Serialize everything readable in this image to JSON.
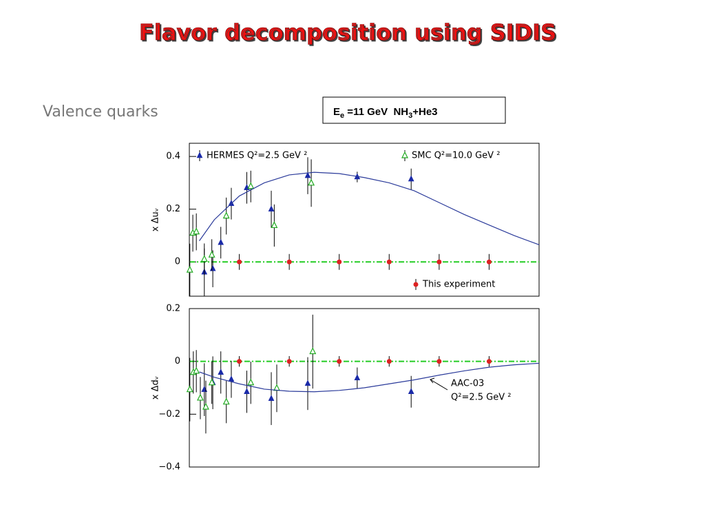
{
  "slide": {
    "title": "Flavor decomposition using SIDIS",
    "subtitle": "Valence quarks",
    "box": [
      "E",
      "e",
      " =11 GeV  NH",
      "3",
      "+He3"
    ]
  },
  "chart_data": [
    {
      "type": "scatter",
      "ylabel": "x Δuᵥ",
      "xlim": [
        0,
        0.7
      ],
      "ylim": [
        -0.13,
        0.45
      ],
      "yticks": [
        0,
        0.2,
        0.4
      ],
      "zero_line": {
        "value": 0,
        "color": "#22cc22"
      },
      "series": [
        {
          "name": "HERMES Q²=2.5 GeV ²",
          "color": "#1a2aa8",
          "marker": "triangle",
          "legend": "top-left",
          "x": [
            0.03,
            0.047,
            0.063,
            0.084,
            0.115,
            0.164,
            0.237,
            0.336,
            0.444
          ],
          "values": [
            -0.039,
            -0.026,
            0.073,
            0.221,
            0.281,
            0.2,
            0.327,
            0.322,
            0.314
          ],
          "errors": [
            0.09,
            0.07,
            0.06,
            0.06,
            0.06,
            0.07,
            0.07,
            0.02,
            0.04
          ]
        },
        {
          "name": "SMC Q²=10.0 GeV ²",
          "color": "#22aa22",
          "marker": "open-triangle",
          "legend": "top-right",
          "x": [
            0.001,
            0.007,
            0.014,
            0.03,
            0.045,
            0.074,
            0.123,
            0.17,
            0.244
          ],
          "values": [
            -0.031,
            0.109,
            0.114,
            0.01,
            0.026,
            0.174,
            0.286,
            0.138,
            0.299
          ],
          "errors": [
            0.1,
            0.07,
            0.07,
            0.06,
            0.06,
            0.07,
            0.06,
            0.08,
            0.09
          ]
        },
        {
          "name": "This experiment",
          "color": "#dd2222",
          "marker": "circle",
          "legend": "bottom-right",
          "x": [
            0.1,
            0.2,
            0.3,
            0.4,
            0.5,
            0.6
          ],
          "values": [
            0,
            0,
            0,
            0,
            0,
            0
          ],
          "errors": [
            0.03,
            0.03,
            0.03,
            0.03,
            0.03,
            0.03
          ]
        },
        {
          "color": "#2a3a9a",
          "marker": "line",
          "x": [
            0.02,
            0.05,
            0.1,
            0.15,
            0.2,
            0.25,
            0.3,
            0.35,
            0.4,
            0.45,
            0.5,
            0.55,
            0.6,
            0.65,
            0.7
          ],
          "values": [
            0.08,
            0.16,
            0.25,
            0.3,
            0.33,
            0.34,
            0.335,
            0.32,
            0.3,
            0.27,
            0.225,
            0.18,
            0.14,
            0.1,
            0.065
          ]
        }
      ]
    },
    {
      "type": "scatter",
      "ylabel": "x Δdᵥ",
      "xlim": [
        0,
        0.7
      ],
      "ylim": [
        -0.4,
        0.2
      ],
      "yticks": [
        0.2,
        0,
        {
          "value": -0.2,
          "label": "−0.2"
        },
        {
          "value": -0.4,
          "label": "−0.4"
        }
      ],
      "zero_line": {
        "value": 0,
        "color": "#22cc22"
      },
      "annotation": [
        "AAC-03",
        "Q²=2.5 GeV ²"
      ],
      "series": [
        {
          "color": "#1a2aa8",
          "marker": "triangle",
          "x": [
            0.03,
            0.047,
            0.063,
            0.084,
            0.115,
            0.164,
            0.237,
            0.336,
            0.444
          ],
          "values": [
            -0.107,
            -0.081,
            -0.042,
            -0.068,
            -0.115,
            -0.141,
            -0.084,
            -0.063,
            -0.115
          ],
          "errors": [
            0.1,
            0.1,
            0.08,
            0.07,
            0.08,
            0.1,
            0.1,
            0.04,
            0.06
          ]
        },
        {
          "color": "#22aa22",
          "marker": "open-triangle",
          "x": [
            0.001,
            0.008,
            0.014,
            0.022,
            0.033,
            0.045,
            0.074,
            0.123,
            0.175,
            0.247
          ],
          "values": [
            -0.107,
            -0.042,
            -0.037,
            -0.139,
            -0.173,
            -0.081,
            -0.154,
            -0.081,
            -0.102,
            0.037
          ],
          "errors": [
            0.12,
            0.08,
            0.08,
            0.08,
            0.1,
            0.08,
            0.08,
            0.08,
            0.09,
            0.14
          ]
        },
        {
          "color": "#dd2222",
          "marker": "circle",
          "x": [
            0.1,
            0.2,
            0.3,
            0.4,
            0.5,
            0.6
          ],
          "values": [
            0,
            0,
            0,
            0,
            0,
            0
          ],
          "errors": [
            0.02,
            0.02,
            0.02,
            0.02,
            0.02,
            0.02
          ]
        },
        {
          "color": "#2a3a9a",
          "marker": "line",
          "x": [
            0.02,
            0.05,
            0.1,
            0.15,
            0.2,
            0.25,
            0.3,
            0.35,
            0.4,
            0.45,
            0.5,
            0.55,
            0.6,
            0.65,
            0.7
          ],
          "values": [
            -0.04,
            -0.06,
            -0.085,
            -0.105,
            -0.113,
            -0.115,
            -0.11,
            -0.1,
            -0.085,
            -0.07,
            -0.052,
            -0.036,
            -0.022,
            -0.013,
            -0.007
          ]
        }
      ]
    }
  ]
}
